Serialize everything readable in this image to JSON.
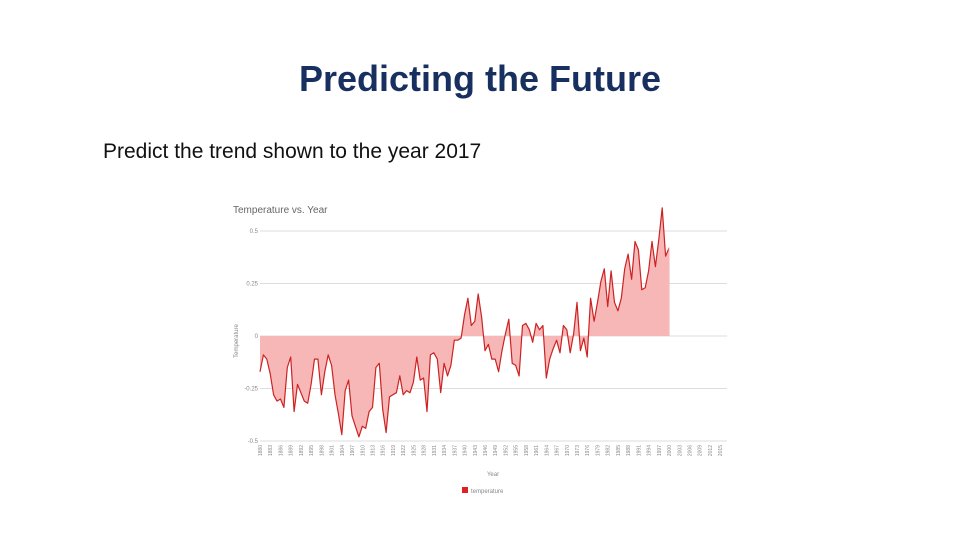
{
  "slide": {
    "title": "Predicting the Future",
    "body": "Predict the trend shown to the year 2017"
  },
  "chart_data": {
    "type": "area",
    "title": "Temperature vs. Year",
    "xlabel": "Year",
    "ylabel": "Temperature",
    "legend": [
      "temperature"
    ],
    "legend_position": "bottom",
    "grid": true,
    "ylim": [
      -0.5,
      0.5
    ],
    "yticks": [
      0.5,
      0.25,
      0,
      -0.25,
      -0.5
    ],
    "ytick_labels": [
      "0.5",
      "0.25",
      "0",
      "-0.25",
      "-0.5"
    ],
    "xlim": [
      1880,
      2017
    ],
    "xtick_labels": [
      "1880",
      "1883",
      "1886",
      "1889",
      "1892",
      "1895",
      "1898",
      "1901",
      "1904",
      "1907",
      "1910",
      "1913",
      "1916",
      "1919",
      "1922",
      "1925",
      "1928",
      "1931",
      "1934",
      "1937",
      "1940",
      "1943",
      "1946",
      "1949",
      "1952",
      "1955",
      "1958",
      "1961",
      "1964",
      "1967",
      "1970",
      "1973",
      "1976",
      "1979",
      "1982",
      "1985",
      "1988",
      "1991",
      "1994",
      "1997",
      "2000",
      "2003",
      "2006",
      "2009",
      "2012",
      "2015"
    ],
    "colors": {
      "fill": "#f7b7b7",
      "line": "#cc2222",
      "legend": "#dd2222",
      "grid": "#dddddd",
      "axis_text": "#888888",
      "title": "#666666"
    },
    "series": [
      {
        "name": "temperature",
        "x": [
          1880,
          1881,
          1882,
          1883,
          1884,
          1885,
          1886,
          1887,
          1888,
          1889,
          1890,
          1891,
          1892,
          1893,
          1894,
          1895,
          1896,
          1897,
          1898,
          1899,
          1900,
          1901,
          1902,
          1903,
          1904,
          1905,
          1906,
          1907,
          1908,
          1909,
          1910,
          1911,
          1912,
          1913,
          1914,
          1915,
          1916,
          1917,
          1918,
          1919,
          1920,
          1921,
          1922,
          1923,
          1924,
          1925,
          1926,
          1927,
          1928,
          1929,
          1930,
          1931,
          1932,
          1933,
          1934,
          1935,
          1936,
          1937,
          1938,
          1939,
          1940,
          1941,
          1942,
          1943,
          1944,
          1945,
          1946,
          1947,
          1948,
          1949,
          1950,
          1951,
          1952,
          1953,
          1954,
          1955,
          1956,
          1957,
          1958,
          1959,
          1960,
          1961,
          1962,
          1963,
          1964,
          1965,
          1966,
          1967,
          1968,
          1969,
          1970,
          1971,
          1972,
          1973,
          1974,
          1975,
          1976,
          1977,
          1978,
          1979,
          1980,
          1981,
          1982,
          1983,
          1984,
          1985,
          1986,
          1987,
          1988,
          1989,
          1990,
          1991,
          1992,
          1993,
          1994,
          1995,
          1996,
          1997,
          1998,
          1999,
          2000
        ],
        "y": [
          -0.17,
          -0.09,
          -0.11,
          -0.18,
          -0.28,
          -0.31,
          -0.3,
          -0.34,
          -0.15,
          -0.1,
          -0.36,
          -0.23,
          -0.27,
          -0.31,
          -0.32,
          -0.23,
          -0.11,
          -0.11,
          -0.28,
          -0.17,
          -0.09,
          -0.14,
          -0.28,
          -0.37,
          -0.47,
          -0.26,
          -0.21,
          -0.38,
          -0.43,
          -0.48,
          -0.43,
          -0.44,
          -0.36,
          -0.34,
          -0.15,
          -0.13,
          -0.35,
          -0.46,
          -0.29,
          -0.28,
          -0.27,
          -0.19,
          -0.28,
          -0.26,
          -0.27,
          -0.22,
          -0.1,
          -0.21,
          -0.2,
          -0.36,
          -0.09,
          -0.08,
          -0.11,
          -0.27,
          -0.13,
          -0.19,
          -0.14,
          -0.02,
          -0.02,
          -0.01,
          0.1,
          0.18,
          0.05,
          0.07,
          0.2,
          0.09,
          -0.07,
          -0.04,
          -0.11,
          -0.11,
          -0.17,
          -0.07,
          0.01,
          0.08,
          -0.13,
          -0.14,
          -0.19,
          0.05,
          0.06,
          0.03,
          -0.03,
          0.06,
          0.03,
          0.05,
          -0.2,
          -0.11,
          -0.06,
          -0.02,
          -0.08,
          0.05,
          0.03,
          -0.08,
          0.01,
          0.16,
          -0.07,
          -0.01,
          -0.1,
          0.18,
          0.07,
          0.16,
          0.26,
          0.32,
          0.14,
          0.31,
          0.16,
          0.12,
          0.18,
          0.32,
          0.39,
          0.27,
          0.45,
          0.41,
          0.22,
          0.23,
          0.31,
          0.45,
          0.33,
          0.46,
          0.61,
          0.38,
          0.42
        ]
      }
    ]
  }
}
